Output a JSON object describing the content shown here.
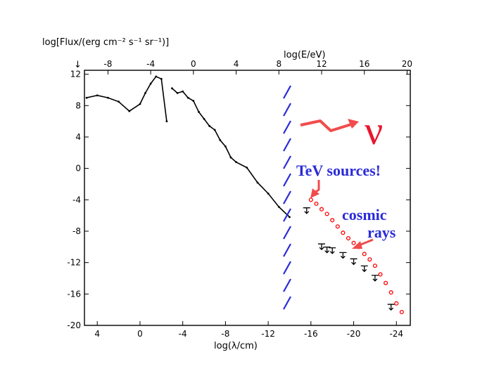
{
  "chart_data": {
    "type": "line",
    "title": "",
    "ylabel": "log[Flux/(erg cm⁻² s⁻¹ sr⁻¹)]",
    "xlabel_bottom": "log(λ/cm)",
    "xlabel_top": "log(E/eV)",
    "ylim": [
      -20,
      12.5
    ],
    "xlim_bottom": [
      5.2,
      -25.3
    ],
    "xlim_top": [
      -10.2,
      20.3
    ],
    "y_ticks": [
      "12",
      "8",
      "4",
      "0",
      "-4",
      "-8",
      "-12",
      "-16",
      "-20"
    ],
    "x_bottom_ticks": [
      "4",
      "0",
      "-4",
      "-8",
      "-12",
      "-16",
      "-20",
      "-24"
    ],
    "x_top_ticks": [
      "-8",
      "-4",
      "0",
      "4",
      "8",
      "12",
      "16",
      "20"
    ],
    "annotations": {
      "nu_symbol": "ν",
      "tev_sources": "TeV sources!",
      "cosmic_rays_line1": "cosmic",
      "cosmic_rays_line2": "rays",
      "y_arrow": "↓"
    },
    "series": [
      {
        "values_x_logE": [
          -10.0,
          -9.0,
          -8.0,
          -7.0,
          -6.0,
          -5.0,
          -4.5,
          -4.0,
          -3.5,
          -3.0,
          -2.5
        ],
        "values_y": [
          9.0,
          9.3,
          9.0,
          8.5,
          7.3,
          8.2,
          9.6,
          10.8,
          11.7,
          11.4,
          6.0
        ]
      },
      {
        "values_x_logE": [
          -2.0,
          -1.5,
          -1.0,
          -0.5,
          0.0,
          0.5,
          1.0,
          1.5,
          2.0,
          2.5,
          3.0,
          3.5,
          4.0,
          5.0,
          6.0,
          7.0,
          8.0,
          9.0
        ],
        "values_y": [
          10.2,
          9.6,
          9.8,
          9.0,
          8.6,
          7.2,
          6.3,
          5.4,
          4.9,
          3.6,
          2.8,
          1.4,
          0.8,
          0.1,
          -1.8,
          -3.2,
          -4.9,
          -6.2
        ]
      },
      {
        "values_x_logE": [
          11.0,
          11.5,
          12.0,
          12.5,
          13.0,
          13.5,
          14.0,
          14.5,
          15.0,
          15.5,
          16.0,
          16.5,
          17.0,
          17.5,
          18.0,
          18.5,
          19.0,
          19.5
        ],
        "values_y": [
          -4.0,
          -4.5,
          -5.2,
          -5.8,
          -6.6,
          -7.4,
          -8.2,
          -8.9,
          -9.5,
          -10.0,
          -10.9,
          -11.6,
          -12.4,
          -13.5,
          -14.6,
          -15.8,
          -17.2,
          -18.3
        ]
      },
      {
        "values_x_logE": [
          10.6,
          12.0,
          12.5,
          13.0,
          14.0,
          15.0,
          16.0,
          17.0,
          18.5
        ],
        "values_y": [
          -5.2,
          -9.8,
          -10.2,
          -10.3,
          -10.9,
          -11.7,
          -12.6,
          -13.8,
          -17.5
        ]
      }
    ],
    "grid": false,
    "colors": {
      "data": "#000000",
      "highlight": "#ff0000",
      "annotation_text": "#2b2bd9",
      "hatch": "#2b2bd9"
    }
  }
}
